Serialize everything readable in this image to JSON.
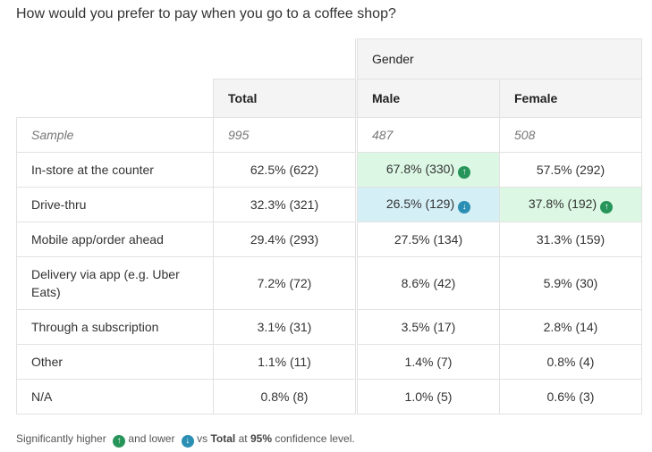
{
  "question": "How would you prefer to pay when you go to a coffee shop?",
  "group_header": "Gender",
  "columns": [
    "Total",
    "Male",
    "Female"
  ],
  "sample": {
    "label": "Sample",
    "values": [
      "995",
      "487",
      "508"
    ]
  },
  "rows": [
    {
      "label": "In-store at the counter",
      "values": [
        "62.5% (622)",
        "67.8% (330)",
        "57.5% (292)"
      ],
      "sig": [
        "",
        "up",
        ""
      ]
    },
    {
      "label": "Drive-thru",
      "values": [
        "32.3% (321)",
        "26.5% (129)",
        "37.8% (192)"
      ],
      "sig": [
        "",
        "down",
        "up"
      ]
    },
    {
      "label": "Mobile app/order ahead",
      "values": [
        "29.4% (293)",
        "27.5% (134)",
        "31.3% (159)"
      ],
      "sig": [
        "",
        "",
        ""
      ]
    },
    {
      "label": "Delivery via app (e.g. Uber Eats)",
      "values": [
        "7.2% (72)",
        "8.6% (42)",
        "5.9% (30)"
      ],
      "sig": [
        "",
        "",
        ""
      ]
    },
    {
      "label": "Through a subscription",
      "values": [
        "3.1% (31)",
        "3.5% (17)",
        "2.8% (14)"
      ],
      "sig": [
        "",
        "",
        ""
      ]
    },
    {
      "label": "Other",
      "values": [
        "1.1% (11)",
        "1.4% (7)",
        "0.8% (4)"
      ],
      "sig": [
        "",
        "",
        ""
      ]
    },
    {
      "label": "N/A",
      "values": [
        "0.8% (8)",
        "1.0% (5)",
        "0.6% (3)"
      ],
      "sig": [
        "",
        "",
        ""
      ]
    }
  ],
  "footer": {
    "t1": "Significantly higher",
    "t2": "and lower",
    "t3": "vs",
    "t4": "Total",
    "t5": "at",
    "t6": "95%",
    "t7": "confidence level."
  },
  "colors": {
    "higher": "#27955a",
    "lower": "#2b8fb3"
  }
}
